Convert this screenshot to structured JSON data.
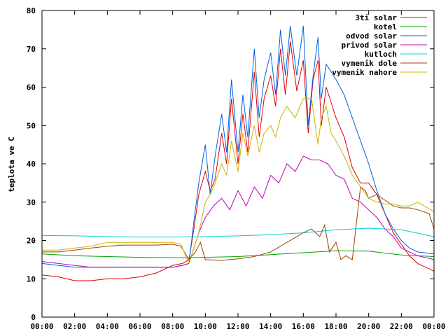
{
  "chart_data": {
    "type": "line",
    "title": "",
    "xlabel": "",
    "ylabel": "teplota ve C",
    "xlim": [
      0,
      24
    ],
    "ylim": [
      0,
      80
    ],
    "x_ticks": [
      "00:00",
      "02:00",
      "04:00",
      "06:00",
      "08:00",
      "10:00",
      "12:00",
      "14:00",
      "16:00",
      "18:00",
      "20:00",
      "22:00",
      "00:00"
    ],
    "y_ticks": [
      "0",
      "10",
      "20",
      "30",
      "40",
      "50",
      "60",
      "70",
      "80"
    ],
    "grid": false,
    "legend_position": "top-right",
    "series": [
      {
        "name": "3ti solar",
        "color": "#e00000",
        "x": [
          0,
          1,
          2,
          3,
          4,
          5,
          6,
          7,
          8,
          8.6,
          9,
          9.3,
          9.6,
          10,
          10.3,
          10.6,
          11,
          11.3,
          11.6,
          12,
          12.3,
          12.6,
          13,
          13.3,
          13.6,
          14,
          14.3,
          14.6,
          14.9,
          15.2,
          15.6,
          16,
          16.3,
          16.6,
          16.9,
          17.1,
          17.4,
          17.7,
          18,
          18.5,
          19,
          19.5,
          20,
          20.5,
          21,
          21.5,
          22,
          22.5,
          23,
          24
        ],
        "y": [
          11,
          10.5,
          9.5,
          9.5,
          10,
          10,
          10.5,
          11.5,
          13.5,
          14,
          15,
          23,
          32,
          38,
          33,
          36,
          48,
          40,
          57,
          40,
          53,
          43,
          64,
          47,
          57,
          63,
          55,
          70,
          58,
          72,
          59,
          67,
          48,
          62,
          67,
          50,
          60,
          56,
          52,
          47,
          39,
          35,
          35,
          32,
          27,
          22,
          19,
          16,
          14,
          12
        ]
      },
      {
        "name": "kotel",
        "color": "#00a000",
        "x": [
          0,
          2,
          4,
          6,
          8,
          9,
          10,
          12,
          14,
          16,
          18,
          20,
          22,
          24
        ],
        "y": [
          16.5,
          16,
          15.8,
          15.6,
          15.5,
          15.5,
          15.6,
          15.8,
          16.3,
          16.8,
          17.3,
          17.2,
          16.2,
          15.8
        ]
      },
      {
        "name": "odvod solar",
        "color": "#0060e0",
        "x": [
          0,
          1,
          2,
          3,
          4,
          5,
          6,
          7,
          8,
          8.6,
          9,
          9.3,
          9.6,
          10,
          10.3,
          10.6,
          11,
          11.3,
          11.6,
          12,
          12.3,
          12.6,
          13,
          13.3,
          13.6,
          14,
          14.3,
          14.6,
          14.9,
          15.2,
          15.6,
          16,
          16.3,
          16.6,
          16.9,
          17.1,
          17.4,
          17.7,
          18,
          18.5,
          19,
          19.5,
          20,
          20.5,
          21,
          21.5,
          22,
          22.5,
          23,
          24
        ],
        "y": [
          14,
          13.5,
          13,
          13,
          13,
          13,
          13,
          13,
          13,
          13.5,
          14,
          25,
          35,
          45,
          32,
          42,
          53,
          43,
          62,
          43,
          58,
          47,
          70,
          52,
          62,
          69,
          58,
          75,
          63,
          76,
          63,
          76,
          50,
          63,
          73,
          57,
          66,
          64,
          62,
          58,
          52,
          46,
          40,
          33,
          27,
          23,
          20,
          18,
          17,
          16.5
        ]
      },
      {
        "name": "privod solar",
        "color": "#c000c0",
        "x": [
          0,
          1,
          2,
          3,
          4,
          5,
          6,
          7,
          8,
          8.6,
          9,
          9.3,
          9.6,
          10,
          10.5,
          11,
          11.5,
          12,
          12.5,
          13,
          13.5,
          14,
          14.5,
          15,
          15.5,
          16,
          16.5,
          17,
          17.5,
          18,
          18.5,
          19,
          19.5,
          20,
          20.5,
          21,
          21.5,
          22,
          23,
          24
        ],
        "y": [
          14.5,
          14,
          13.5,
          13,
          13,
          13,
          13,
          13,
          13,
          13.5,
          14,
          18,
          22,
          26,
          29,
          31,
          28,
          33,
          29,
          34,
          31,
          37,
          35,
          40,
          38,
          42,
          41,
          41,
          40,
          37,
          36,
          31,
          30,
          28,
          26,
          23,
          21,
          18,
          16,
          15
        ]
      },
      {
        "name": "kutloch",
        "color": "#00d0d0",
        "x": [
          0,
          2,
          4,
          6,
          8,
          10,
          12,
          14,
          16,
          18,
          20,
          22,
          24
        ],
        "y": [
          21.3,
          21.2,
          21,
          20.9,
          20.9,
          21,
          21.2,
          21.5,
          22,
          22.8,
          23.2,
          22.8,
          21
        ]
      },
      {
        "name": "vymenik dole",
        "color": "#a04000",
        "x": [
          0,
          1,
          2,
          3,
          4,
          5,
          6,
          7,
          8,
          8.5,
          9,
          9.4,
          9.7,
          10,
          11,
          12,
          13,
          14,
          15,
          16,
          16.5,
          17,
          17.3,
          17.6,
          18,
          18.3,
          18.6,
          19,
          19.5,
          19.8,
          20,
          20.5,
          21,
          21.5,
          22,
          22.5,
          23,
          23.7,
          24
        ],
        "y": [
          17,
          17,
          17.5,
          18,
          18.5,
          18.8,
          18.8,
          18.8,
          19,
          18.5,
          15,
          17,
          19.5,
          15,
          14.8,
          15.2,
          15.8,
          17,
          19.5,
          22,
          23,
          21,
          24,
          17,
          19.5,
          15,
          16,
          15,
          34,
          33,
          31,
          32,
          30.5,
          29,
          28.5,
          28.5,
          28,
          27,
          23
        ]
      },
      {
        "name": "vymenik nahore",
        "color": "#c8b400",
        "x": [
          0,
          1,
          2,
          3,
          4,
          5,
          6,
          7,
          8,
          8.5,
          9,
          9.3,
          9.6,
          10,
          10.3,
          10.6,
          11,
          11.3,
          11.6,
          12,
          12.3,
          12.6,
          13,
          13.3,
          13.6,
          14,
          14.3,
          14.6,
          15,
          15.5,
          16,
          16.5,
          16.9,
          17.1,
          17.4,
          17.7,
          18,
          18.5,
          19,
          19.5,
          20,
          20.5,
          21,
          21.5,
          22,
          22.5,
          23,
          24
        ],
        "y": [
          17.5,
          17.5,
          18,
          18.5,
          19.5,
          19.5,
          19.5,
          19.5,
          19.5,
          19,
          14,
          18,
          22,
          30,
          32,
          35,
          40,
          37,
          46,
          38,
          48,
          42,
          50,
          43,
          48,
          50,
          47,
          52,
          55,
          52,
          57,
          57,
          45,
          52,
          55,
          48,
          46,
          42,
          37,
          34,
          31,
          30,
          29.5,
          29.5,
          29,
          29,
          30,
          27.5
        ]
      }
    ]
  }
}
